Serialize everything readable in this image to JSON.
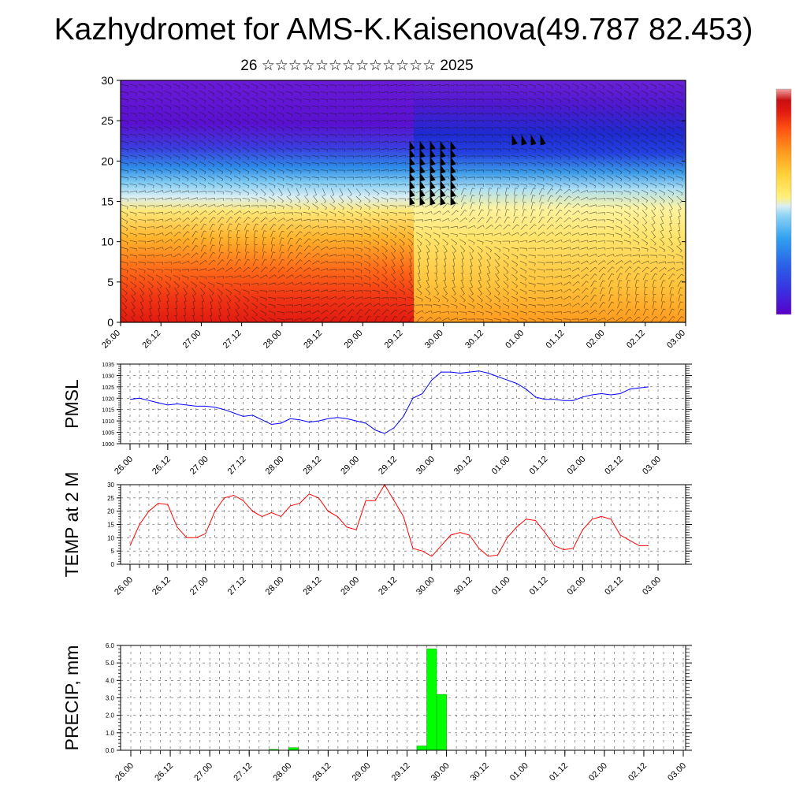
{
  "title": "Kazhydromet for AMS-K.Kaisenova(49.787 82.453)",
  "subtitle": "26 ☆☆☆☆☆☆☆☆☆☆☆☆☆ 2025",
  "x_tick_labels": [
    "26.00",
    "26.12",
    "27.00",
    "27.12",
    "28.00",
    "28.12",
    "29.00",
    "29.12",
    "30.00",
    "30.12",
    "01.00",
    "01.12",
    "02.00",
    "02.12",
    "03.00"
  ],
  "chart_data": [
    {
      "type": "heatmap",
      "name": "vertical-cross-section",
      "x": [
        "26.00",
        "26.12",
        "27.00",
        "27.12",
        "28.00",
        "28.12",
        "29.00",
        "29.12",
        "30.00",
        "30.12",
        "01.00",
        "01.12",
        "02.00",
        "02.12",
        "03.00"
      ],
      "ylim": [
        0,
        30
      ],
      "y_ticks": [
        0,
        5,
        10,
        15,
        20,
        25,
        30
      ],
      "colorbar": [
        "#5a00c8",
        "#3a2ee0",
        "#2a62e8",
        "#30a2f0",
        "#8fd4f4",
        "#d8eef4",
        "#fff07a",
        "#ffd23a",
        "#ff9a1e",
        "#ff5512",
        "#e21a10",
        "#c80f10",
        "#f0a4a4"
      ]
    },
    {
      "type": "line",
      "name": "PMSL",
      "ylabel": "PMSL",
      "ylim": [
        1000,
        1035
      ],
      "y_ticks": [
        1000,
        1005,
        1010,
        1015,
        1020,
        1025,
        1030,
        1035
      ],
      "color": "#0000ff",
      "x_index": [
        0.0,
        0.25,
        0.5,
        0.75,
        1.0,
        1.25,
        1.5,
        1.75,
        2.0,
        2.25,
        2.5,
        2.75,
        3.0,
        3.25,
        3.5,
        3.75,
        4.0,
        4.25,
        4.5,
        4.75,
        5.0,
        5.25,
        5.5,
        5.75,
        6.0,
        6.25,
        6.5,
        6.75,
        7.0,
        7.25,
        7.5,
        7.75,
        8.0,
        8.25,
        8.5,
        8.75,
        9.0,
        9.25,
        9.5,
        9.75,
        10.0,
        10.25,
        10.5,
        10.75,
        11.0,
        11.25,
        11.5,
        11.75,
        12.0,
        12.25,
        12.5,
        12.75,
        13.0,
        13.25,
        13.5,
        13.75
      ],
      "values": [
        1019.5,
        1020,
        1019,
        1018,
        1017,
        1017.5,
        1017,
        1016.5,
        1016.5,
        1016,
        1015,
        1013.5,
        1012,
        1012.5,
        1010.5,
        1008.5,
        1009,
        1011,
        1010.5,
        1009.5,
        1010,
        1011,
        1011.5,
        1011,
        1010,
        1009,
        1006,
        1004.5,
        1007,
        1012,
        1020,
        1022,
        1028,
        1031.5,
        1031.5,
        1031,
        1031.5,
        1032,
        1031,
        1029.5,
        1028,
        1026.5,
        1024,
        1020.5,
        1019.5,
        1019.5,
        1019,
        1019,
        1020.5,
        1021.5,
        1022,
        1021.5,
        1022,
        1024,
        1024.5,
        1025
      ]
    },
    {
      "type": "line",
      "name": "TEMP at 2 M",
      "ylabel": "TEMP at 2 M",
      "ylim": [
        0,
        30
      ],
      "y_ticks": [
        0,
        5,
        10,
        15,
        20,
        25,
        30
      ],
      "color": "#ff0000",
      "x_index": [
        0.0,
        0.25,
        0.5,
        0.75,
        1.0,
        1.25,
        1.5,
        1.75,
        2.0,
        2.25,
        2.5,
        2.75,
        3.0,
        3.25,
        3.5,
        3.75,
        4.0,
        4.25,
        4.5,
        4.75,
        5.0,
        5.25,
        5.5,
        5.75,
        6.0,
        6.25,
        6.5,
        6.75,
        7.0,
        7.25,
        7.5,
        7.75,
        8.0,
        8.25,
        8.5,
        8.75,
        9.0,
        9.25,
        9.5,
        9.75,
        10.0,
        10.25,
        10.5,
        10.75,
        11.0,
        11.25,
        11.5,
        11.75,
        12.0,
        12.25,
        12.5,
        12.75,
        13.0,
        13.25,
        13.5,
        13.75
      ],
      "values": [
        7,
        15,
        20,
        23,
        22.5,
        14,
        10,
        10,
        11.5,
        20,
        25,
        26,
        24,
        20,
        18,
        19.5,
        18,
        22,
        23,
        26.5,
        25,
        20,
        18,
        14,
        13,
        24,
        24,
        30,
        24,
        18,
        6,
        5,
        3,
        7,
        11,
        12,
        11,
        6,
        3,
        3.5,
        10,
        14,
        17,
        16.5,
        12,
        7,
        5.5,
        6,
        13,
        17,
        18,
        17,
        11,
        9,
        7,
        7
      ]
    },
    {
      "type": "bar",
      "name": "PRECIP, mm",
      "ylabel": "PRECIP, mm",
      "ylim": [
        0,
        6
      ],
      "y_ticks": [
        "0.0",
        "1.0",
        "2.0",
        "3.0",
        "4.0",
        "5.0",
        "6.0"
      ],
      "color": "#00ff00",
      "x_index": [
        3.5,
        4.0,
        7.25,
        7.5,
        7.75
      ],
      "values": [
        0.05,
        0.15,
        0.25,
        5.8,
        3.2
      ]
    }
  ]
}
